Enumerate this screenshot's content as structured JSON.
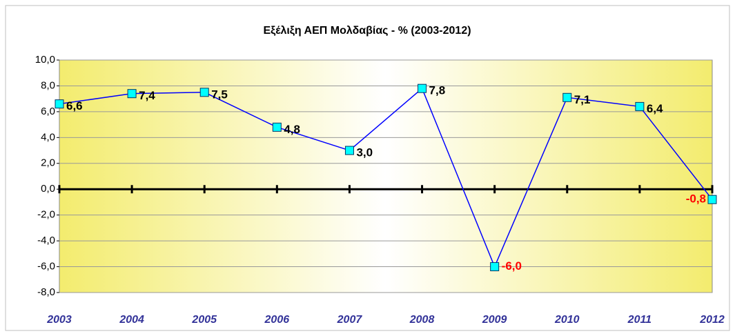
{
  "chart_data": {
    "type": "line",
    "title": "Εξέλιξη ΑΕΠ Μολδαβίας - % (2003-2012)",
    "categories": [
      "2003",
      "2004",
      "2005",
      "2006",
      "2007",
      "2008",
      "2009",
      "2010",
      "2011",
      "2012"
    ],
    "series": [
      {
        "name": "ΑΕΠ",
        "color": "#0000ff",
        "marker_color": "#00ffff",
        "values": [
          6.6,
          7.4,
          7.5,
          4.8,
          3.0,
          7.8,
          -6.0,
          7.1,
          6.4,
          -0.8
        ],
        "value_labels": [
          "6,6",
          "7,4",
          "7,5",
          "4,8",
          "3,0",
          "7,8",
          "-6,0",
          "7,1",
          "6,4",
          "-0,8"
        ]
      }
    ],
    "ylim": [
      -8,
      10
    ],
    "yticks": [
      {
        "value": -8,
        "label": "-8,0"
      },
      {
        "value": -6,
        "label": "-6,0"
      },
      {
        "value": -4,
        "label": "-4,0"
      },
      {
        "value": -2,
        "label": "-2,0"
      },
      {
        "value": 0,
        "label": "0,0"
      },
      {
        "value": 2,
        "label": "2,0"
      },
      {
        "value": 4,
        "label": "4,0"
      },
      {
        "value": 6,
        "label": "6,0"
      },
      {
        "value": 8,
        "label": "8,0"
      },
      {
        "value": 10,
        "label": "10,0"
      }
    ],
    "grid": true,
    "label_color": "#000000",
    "negative_label_color": "#ff0000",
    "category_color": "#333399"
  }
}
